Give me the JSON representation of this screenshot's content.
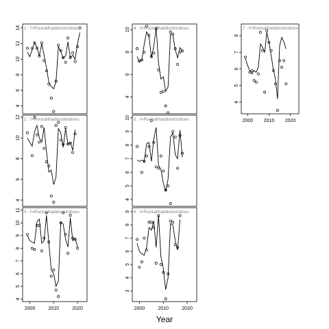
{
  "chart_data": {
    "type": "line",
    "xlabel": "Year",
    "panels": [
      {
        "label": "1 : f=Rockallhaddockindices",
        "ylim": [
          3,
          14.5
        ],
        "yticks": [
          4,
          6,
          8,
          10,
          12,
          14
        ],
        "x_ticks_shown": false,
        "points": [
          [
            1999,
            11.4
          ],
          [
            2001,
            11.4
          ],
          [
            2002,
            12.1
          ],
          [
            2003,
            11.4
          ],
          [
            2004,
            10.4
          ],
          [
            2005,
            12.1
          ],
          [
            2006,
            9.8
          ],
          [
            2007,
            8.5
          ],
          [
            2008,
            6.8
          ],
          [
            2009,
            5.0
          ],
          [
            2010,
            3.3
          ],
          [
            2011,
            7.2
          ],
          [
            2012,
            11.8
          ],
          [
            2013,
            11.1
          ],
          [
            2014,
            10.2
          ],
          [
            2015,
            9.6
          ],
          [
            2016,
            12.7
          ],
          [
            2017,
            10.2
          ],
          [
            2018,
            10.8
          ],
          [
            2019,
            9.7
          ],
          [
            2020,
            11.6
          ],
          [
            2021,
            14.0
          ]
        ],
        "fit": [
          [
            1999,
            10.9
          ],
          [
            2000,
            10.3
          ],
          [
            2001,
            11.2
          ],
          [
            2002,
            12.1
          ],
          [
            2003,
            11.5
          ],
          [
            2004,
            10.4
          ],
          [
            2005,
            12.0
          ],
          [
            2006,
            10.5
          ],
          [
            2007,
            8.9
          ],
          [
            2008,
            7.0
          ],
          [
            2009,
            6.5
          ],
          [
            2010,
            6.2
          ],
          [
            2011,
            7.1
          ],
          [
            2012,
            11.6
          ],
          [
            2013,
            11.0
          ],
          [
            2014,
            10.1
          ],
          [
            2015,
            10.4
          ],
          [
            2016,
            12.2
          ],
          [
            2017,
            10.2
          ],
          [
            2018,
            10.5
          ],
          [
            2019,
            10.0
          ],
          [
            2020,
            12.0
          ],
          [
            2021,
            13.4
          ]
        ]
      },
      {
        "label": "2 : f=Rockallhaddockindices",
        "ylim": [
          3.4,
          12.2
        ],
        "yticks": [
          4,
          6,
          8,
          10,
          12
        ],
        "x_ticks_shown": false,
        "points": [
          [
            1999,
            10.5
          ],
          [
            2001,
            8.3
          ],
          [
            2002,
            12.0
          ],
          [
            2003,
            10.3
          ],
          [
            2004,
            9.6
          ],
          [
            2005,
            11.1
          ],
          [
            2006,
            9.0
          ],
          [
            2007,
            7.7
          ],
          [
            2008,
            7.3
          ],
          [
            2009,
            4.4
          ],
          [
            2010,
            3.8
          ],
          [
            2011,
            11.2
          ],
          [
            2012,
            11.5
          ],
          [
            2013,
            9.8
          ],
          [
            2014,
            9.4
          ],
          [
            2015,
            11.0
          ],
          [
            2016,
            9.4
          ],
          [
            2017,
            9.5
          ],
          [
            2018,
            8.6
          ],
          [
            2019,
            10.4
          ]
        ],
        "fit": [
          [
            1999,
            10.0
          ],
          [
            2000,
            9.6
          ],
          [
            2001,
            9.2
          ],
          [
            2002,
            10.6
          ],
          [
            2003,
            11.2
          ],
          [
            2004,
            10.0
          ],
          [
            2005,
            9.6
          ],
          [
            2006,
            11.0
          ],
          [
            2007,
            8.7
          ],
          [
            2008,
            6.7
          ],
          [
            2009,
            6.9
          ],
          [
            2010,
            5.5
          ],
          [
            2011,
            6.2
          ],
          [
            2012,
            10.9
          ],
          [
            2013,
            10.5
          ],
          [
            2014,
            9.1
          ],
          [
            2015,
            10.9
          ],
          [
            2016,
            9.4
          ],
          [
            2017,
            9.6
          ],
          [
            2018,
            8.8
          ],
          [
            2019,
            10.8
          ]
        ]
      },
      {
        "label": "3 : f=Rockallhaddockindices",
        "ylim": [
          3.8,
          11.2
        ],
        "yticks": [
          4,
          5,
          6,
          7,
          8,
          9,
          10,
          11
        ],
        "x_ticks_shown": true,
        "points": [
          [
            1999,
            9.1
          ],
          [
            2001,
            8.0
          ],
          [
            2002,
            7.9
          ],
          [
            2003,
            9.8
          ],
          [
            2004,
            9.8
          ],
          [
            2005,
            7.8
          ],
          [
            2006,
            8.8
          ],
          [
            2007,
            10.8
          ],
          [
            2008,
            8.5
          ],
          [
            2009,
            5.8
          ],
          [
            2010,
            6.3
          ],
          [
            2011,
            4.7
          ],
          [
            2012,
            4.2
          ],
          [
            2013,
            10.0
          ],
          [
            2014,
            10.8
          ],
          [
            2015,
            9.1
          ],
          [
            2016,
            7.6
          ],
          [
            2017,
            10.6
          ],
          [
            2018,
            8.8
          ],
          [
            2019,
            8.7
          ],
          [
            2020,
            8.0
          ]
        ],
        "fit": [
          [
            1999,
            9.0
          ],
          [
            2000,
            8.6
          ],
          [
            2001,
            8.5
          ],
          [
            2002,
            8.4
          ],
          [
            2003,
            10.1
          ],
          [
            2004,
            10.3
          ],
          [
            2005,
            8.4
          ],
          [
            2006,
            8.6
          ],
          [
            2007,
            10.6
          ],
          [
            2008,
            8.4
          ],
          [
            2009,
            6.3
          ],
          [
            2010,
            6.0
          ],
          [
            2011,
            5.0
          ],
          [
            2012,
            5.4
          ],
          [
            2013,
            10.1
          ],
          [
            2014,
            9.9
          ],
          [
            2015,
            8.7
          ],
          [
            2016,
            8.1
          ],
          [
            2017,
            10.4
          ],
          [
            2018,
            8.6
          ],
          [
            2019,
            8.8
          ],
          [
            2020,
            8.1
          ]
        ]
      },
      {
        "label": "4 : f=Rockallhaddockindices",
        "ylim": [
          2.5,
          10.5
        ],
        "yticks": [
          4,
          6,
          8,
          10
        ],
        "x_ticks_shown": false,
        "points": [
          [
            1999,
            8.3
          ],
          [
            2000,
            7.2
          ],
          [
            2001,
            7.3
          ],
          [
            2002,
            8.0
          ],
          [
            2003,
            10.3
          ],
          [
            2004,
            9.5
          ],
          [
            2005,
            7.6
          ],
          [
            2006,
            7.9
          ],
          [
            2007,
            10.1
          ],
          [
            2008,
            6.4
          ],
          [
            2009,
            4.4
          ],
          [
            2010,
            4.5
          ],
          [
            2011,
            3.2
          ],
          [
            2012,
            2.6
          ],
          [
            2013,
            9.8
          ],
          [
            2014,
            9.6
          ],
          [
            2015,
            8.3
          ],
          [
            2016,
            6.9
          ],
          [
            2017,
            8.0
          ],
          [
            2018,
            8.1
          ]
        ],
        "fit": [
          [
            1999,
            7.6
          ],
          [
            2000,
            7.1
          ],
          [
            2001,
            7.3
          ],
          [
            2002,
            8.7
          ],
          [
            2003,
            9.8
          ],
          [
            2004,
            9.4
          ],
          [
            2005,
            7.5
          ],
          [
            2006,
            8.5
          ],
          [
            2007,
            10.2
          ],
          [
            2008,
            7.0
          ],
          [
            2009,
            5.6
          ],
          [
            2010,
            5.8
          ],
          [
            2011,
            4.5
          ],
          [
            2012,
            4.9
          ],
          [
            2013,
            9.6
          ],
          [
            2014,
            9.5
          ],
          [
            2015,
            8.2
          ],
          [
            2016,
            7.5
          ],
          [
            2017,
            8.4
          ],
          [
            2018,
            8.1
          ]
        ]
      },
      {
        "label": "5 : f=Rockallhaddockindices",
        "ylim": [
          3.5,
          10.2
        ],
        "yticks": [
          4,
          5,
          6,
          7,
          8,
          9,
          10
        ],
        "x_ticks_shown": false,
        "points": [
          [
            1999,
            7.9
          ],
          [
            2001,
            6.0
          ],
          [
            2002,
            6.8
          ],
          [
            2003,
            7.2
          ],
          [
            2004,
            7.9
          ],
          [
            2005,
            9.8
          ],
          [
            2006,
            8.2
          ],
          [
            2007,
            6.4
          ],
          [
            2008,
            6.3
          ],
          [
            2009,
            7.2
          ],
          [
            2010,
            6.1
          ],
          [
            2011,
            4.7
          ],
          [
            2012,
            5.0
          ],
          [
            2013,
            3.7
          ],
          [
            2014,
            9.0
          ],
          [
            2015,
            8.6
          ],
          [
            2016,
            6.3
          ],
          [
            2017,
            8.7
          ],
          [
            2018,
            7.4
          ]
        ],
        "fit": [
          [
            1999,
            6.9
          ],
          [
            2000,
            6.8
          ],
          [
            2001,
            6.9
          ],
          [
            2002,
            6.8
          ],
          [
            2003,
            8.1
          ],
          [
            2004,
            8.2
          ],
          [
            2005,
            6.8
          ],
          [
            2006,
            8.4
          ],
          [
            2007,
            9.3
          ],
          [
            2008,
            6.5
          ],
          [
            2009,
            6.2
          ],
          [
            2010,
            5.2
          ],
          [
            2011,
            4.6
          ],
          [
            2012,
            5.5
          ],
          [
            2013,
            8.6
          ],
          [
            2014,
            8.9
          ],
          [
            2015,
            7.3
          ],
          [
            2016,
            7.0
          ],
          [
            2017,
            9.1
          ],
          [
            2018,
            7.1
          ]
        ]
      },
      {
        "label": "6 : f=Rockallhaddockindices",
        "ylim": [
          2.2,
          9.3
        ],
        "yticks": [
          3,
          4,
          5,
          6,
          7,
          8,
          9
        ],
        "x_ticks_shown": true,
        "points": [
          [
            1999,
            6.9
          ],
          [
            2000,
            4.8
          ],
          [
            2001,
            5.2
          ],
          [
            2002,
            7.0
          ],
          [
            2003,
            6.1
          ],
          [
            2004,
            8.2
          ],
          [
            2005,
            8.2
          ],
          [
            2006,
            7.8
          ],
          [
            2007,
            5.1
          ],
          [
            2008,
            8.7
          ],
          [
            2009,
            5.0
          ],
          [
            2010,
            4.4
          ],
          [
            2011,
            2.4
          ],
          [
            2012,
            4.3
          ],
          [
            2013,
            8.3
          ],
          [
            2014,
            8.2
          ],
          [
            2015,
            6.5
          ],
          [
            2016,
            6.3
          ],
          [
            2017,
            8.7
          ]
        ],
        "fit": [
          [
            1999,
            6.6
          ],
          [
            2000,
            6.0
          ],
          [
            2001,
            5.8
          ],
          [
            2002,
            5.7
          ],
          [
            2003,
            6.3
          ],
          [
            2004,
            7.8
          ],
          [
            2005,
            7.6
          ],
          [
            2006,
            8.3
          ],
          [
            2007,
            6.3
          ],
          [
            2008,
            8.7
          ],
          [
            2009,
            5.6
          ],
          [
            2010,
            4.7
          ],
          [
            2011,
            3.1
          ],
          [
            2012,
            4.0
          ],
          [
            2013,
            8.1
          ],
          [
            2014,
            8.0
          ],
          [
            2015,
            6.8
          ],
          [
            2016,
            6.1
          ],
          [
            2017,
            8.4
          ]
        ]
      },
      {
        "label": "7 : f=Rockallhaddockindices",
        "ylim": [
          3.3,
          8.7
        ],
        "yticks": [
          4,
          5,
          6,
          7,
          8
        ],
        "x_ticks_shown": true,
        "points": [
          [
            1999,
            6.7
          ],
          [
            2001,
            5.8
          ],
          [
            2002,
            5.9
          ],
          [
            2003,
            5.3
          ],
          [
            2004,
            5.2
          ],
          [
            2005,
            5.7
          ],
          [
            2006,
            8.2
          ],
          [
            2007,
            7.1
          ],
          [
            2008,
            4.6
          ],
          [
            2009,
            8.3
          ],
          [
            2010,
            7.6
          ],
          [
            2011,
            7.1
          ],
          [
            2012,
            5.9
          ],
          [
            2013,
            5.1
          ],
          [
            2014,
            3.5
          ],
          [
            2015,
            6.5
          ],
          [
            2016,
            6.1
          ],
          [
            2017,
            6.5
          ],
          [
            2018,
            5.1
          ]
        ],
        "fit": [
          [
            1999,
            6.6
          ],
          [
            2000,
            6.2
          ],
          [
            2001,
            5.9
          ],
          [
            2002,
            5.7
          ],
          [
            2003,
            5.9
          ],
          [
            2004,
            5.8
          ],
          [
            2005,
            6.1
          ],
          [
            2006,
            7.5
          ],
          [
            2007,
            7.3
          ],
          [
            2008,
            7.0
          ],
          [
            2009,
            8.2
          ],
          [
            2010,
            7.6
          ],
          [
            2011,
            6.8
          ],
          [
            2012,
            6.0
          ],
          [
            2013,
            5.4
          ],
          [
            2014,
            4.2
          ],
          [
            2015,
            7.4
          ],
          [
            2016,
            7.9
          ],
          [
            2017,
            7.6
          ],
          [
            2018,
            7.2
          ]
        ]
      }
    ]
  }
}
